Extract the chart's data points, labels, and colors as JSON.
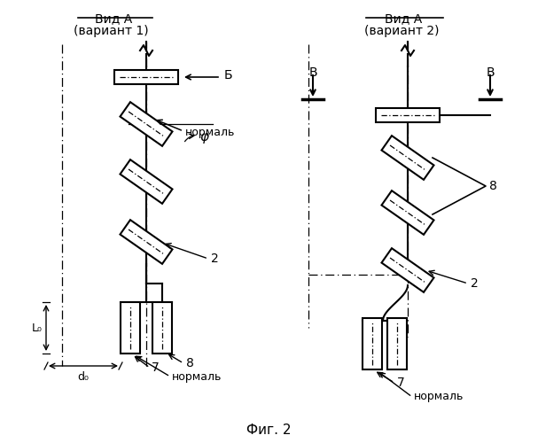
{
  "bg_color": "#ffffff",
  "fig_title": "Фиг. 2",
  "left_title1": "Вид A",
  "left_title2": "(вариант 1)",
  "right_title1": "Вид A",
  "right_title2": "(вариант 2)",
  "label_B1": "Б",
  "label_B2": "B",
  "label_B3": "B",
  "label_norma1": "нормаль",
  "label_norma2": "нормаль",
  "label_norma3": "нормаль",
  "label_phi": "φ",
  "label_2a": "2",
  "label_2b": "2",
  "label_7a": "7",
  "label_7b": "7",
  "label_8a": "8",
  "label_8b": "8",
  "label_L0": "L₀",
  "label_d0": "d₀"
}
